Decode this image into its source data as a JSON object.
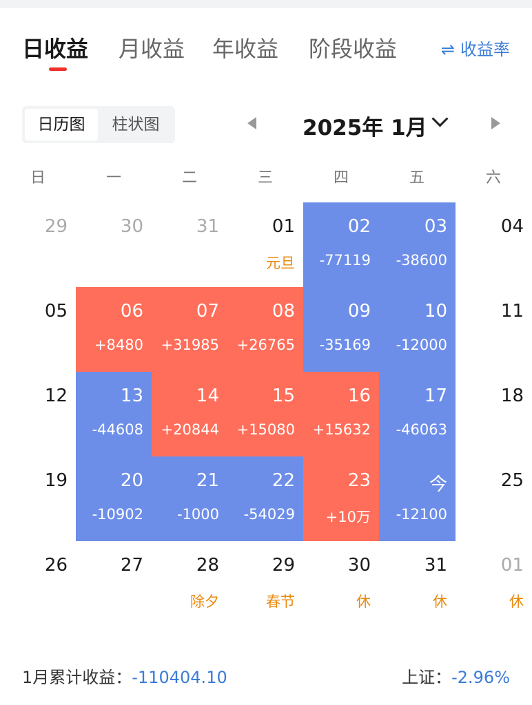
{
  "tabs": [
    {
      "label": "日收益",
      "active": true
    },
    {
      "label": "月收益",
      "active": false
    },
    {
      "label": "年收益",
      "active": false
    },
    {
      "label": "阶段收益",
      "active": false
    }
  ],
  "rate_toggle": {
    "icon": "swap-arrows-icon",
    "label": "收益率"
  },
  "view_switch": {
    "calendar": "日历图",
    "bar": "柱状图",
    "active": "calendar"
  },
  "month_title": "2025年 1月",
  "weekdays": [
    "日",
    "一",
    "二",
    "三",
    "四",
    "五",
    "六"
  ],
  "colors": {
    "gain": "#ff6e5a",
    "loss": "#6d8ee8",
    "holiday": "#e88a0e",
    "accent": "#3b7cd6",
    "tab_indicator": "#f0312b"
  },
  "weeks": [
    [
      {
        "day": "29",
        "muted": true
      },
      {
        "day": "30",
        "muted": true
      },
      {
        "day": "31",
        "muted": true
      },
      {
        "day": "01",
        "note": "元旦"
      },
      {
        "day": "02",
        "value": "-77119",
        "status": "loss"
      },
      {
        "day": "03",
        "value": "-38600",
        "status": "loss"
      },
      {
        "day": "04"
      }
    ],
    [
      {
        "day": "05"
      },
      {
        "day": "06",
        "value": "+8480",
        "status": "gain"
      },
      {
        "day": "07",
        "value": "+31985",
        "status": "gain"
      },
      {
        "day": "08",
        "value": "+26765",
        "status": "gain"
      },
      {
        "day": "09",
        "value": "-35169",
        "status": "loss"
      },
      {
        "day": "10",
        "value": "-12000",
        "status": "loss"
      },
      {
        "day": "11"
      }
    ],
    [
      {
        "day": "12"
      },
      {
        "day": "13",
        "value": "-44608",
        "status": "loss"
      },
      {
        "day": "14",
        "value": "+20844",
        "status": "gain"
      },
      {
        "day": "15",
        "value": "+15080",
        "status": "gain"
      },
      {
        "day": "16",
        "value": "+15632",
        "status": "gain"
      },
      {
        "day": "17",
        "value": "-46063",
        "status": "loss"
      },
      {
        "day": "18"
      }
    ],
    [
      {
        "day": "19"
      },
      {
        "day": "20",
        "value": "-10902",
        "status": "loss"
      },
      {
        "day": "21",
        "value": "-1000",
        "status": "loss"
      },
      {
        "day": "22",
        "value": "-54029",
        "status": "loss"
      },
      {
        "day": "23",
        "value": "+10万",
        "status": "gain"
      },
      {
        "day": "今",
        "value": "-12100",
        "status": "loss"
      },
      {
        "day": "25"
      }
    ],
    [
      {
        "day": "26"
      },
      {
        "day": "27"
      },
      {
        "day": "28",
        "note": "除夕"
      },
      {
        "day": "29",
        "note": "春节"
      },
      {
        "day": "30",
        "note": "休"
      },
      {
        "day": "31",
        "note": "休"
      },
      {
        "day": "01",
        "note": "休",
        "muted": true
      }
    ]
  ],
  "footer": {
    "cumulative_label": "1月累计收益：",
    "cumulative_value": "-110404.10",
    "index_label": "上证：",
    "index_value": "-2.96%"
  }
}
